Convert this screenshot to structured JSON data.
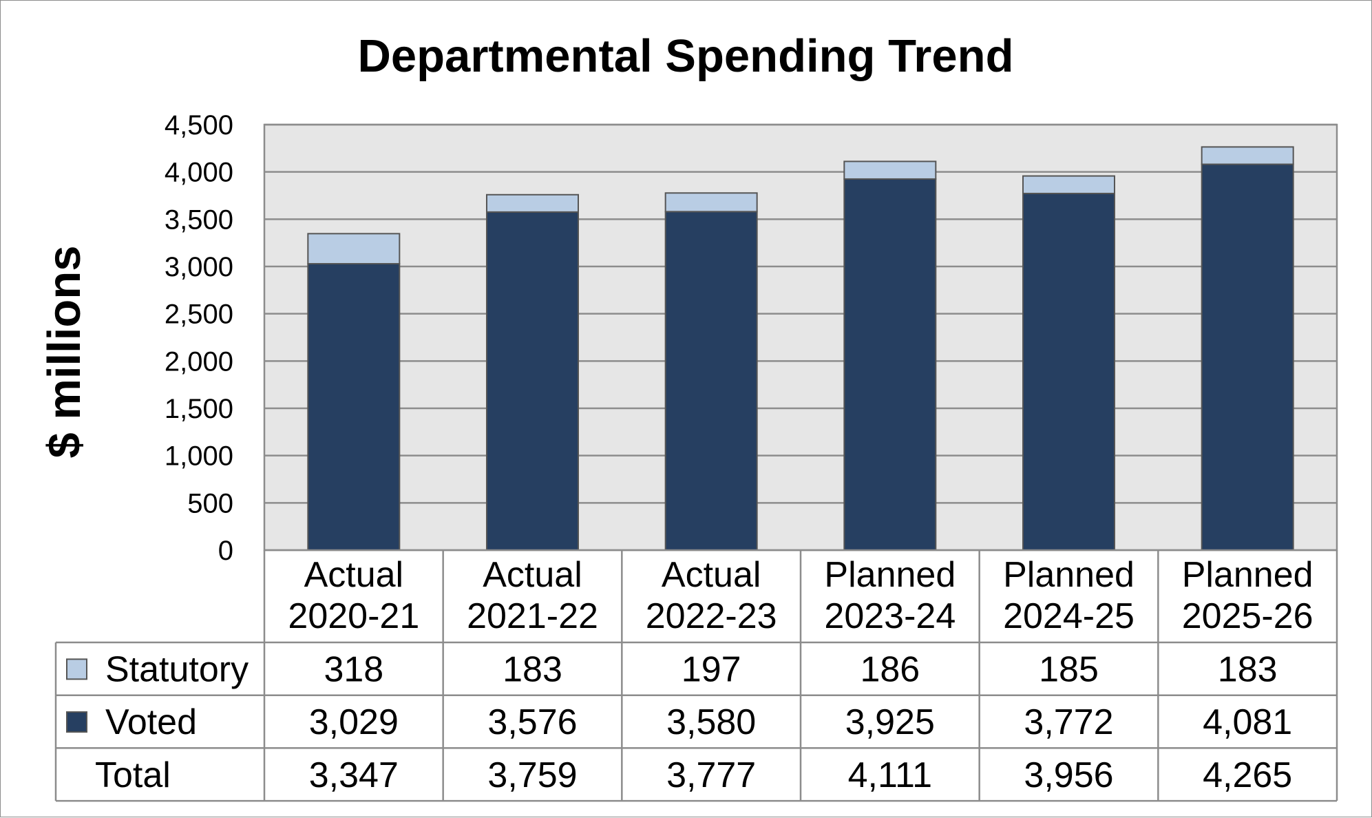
{
  "chart_data": {
    "type": "bar",
    "stacked": true,
    "title": "Departmental Spending Trend",
    "ylabel": "$ millions",
    "xlabel": "",
    "ylim": [
      0,
      4500
    ],
    "yticks": [
      0,
      500,
      1000,
      1500,
      2000,
      2500,
      3000,
      3500,
      4000,
      4500
    ],
    "ytick_labels": [
      "0",
      "500",
      "1,000",
      "1,500",
      "2,000",
      "2,500",
      "3,000",
      "3,500",
      "4,000",
      "4,500"
    ],
    "grid": true,
    "categories": [
      [
        "Actual",
        "2020-21"
      ],
      [
        "Actual",
        "2021-22"
      ],
      [
        "Actual",
        "2022-23"
      ],
      [
        "Planned",
        "2023-24"
      ],
      [
        "Planned",
        "2024-25"
      ],
      [
        "Planned",
        "2025-26"
      ]
    ],
    "series": [
      {
        "name": "Voted",
        "color": "#263f61",
        "values": [
          3029,
          3576,
          3580,
          3925,
          3772,
          4081
        ],
        "labels": [
          "3,029",
          "3,576",
          "3,580",
          "3,925",
          "3,772",
          "4,081"
        ]
      },
      {
        "name": "Statutory",
        "color": "#b9cde4",
        "values": [
          318,
          183,
          197,
          186,
          185,
          183
        ],
        "labels": [
          "318",
          "183",
          "197",
          "186",
          "185",
          "183"
        ]
      }
    ],
    "totals": {
      "name": "Total",
      "values": [
        3347,
        3759,
        3777,
        4111,
        3956,
        4265
      ],
      "labels": [
        "3,347",
        "3,759",
        "3,777",
        "4,111",
        "3,956",
        "4,265"
      ]
    },
    "data_table": true,
    "colors": {
      "plot_background": "#e6e6e6",
      "gridline": "#8c8c8c",
      "border": "#8c8c8c"
    }
  }
}
